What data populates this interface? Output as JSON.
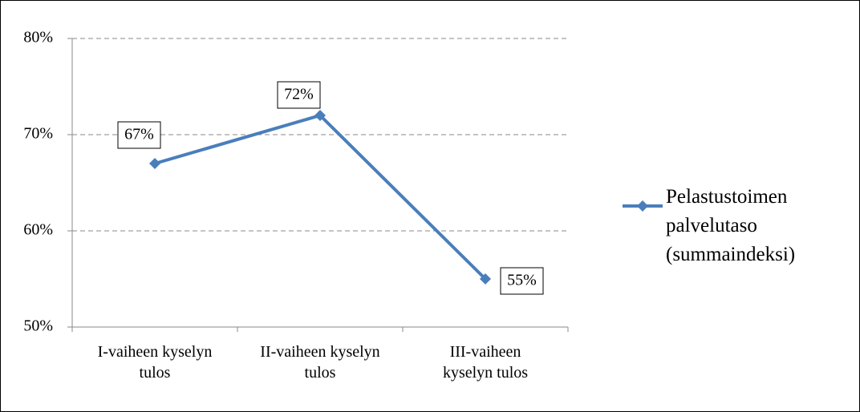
{
  "chart_data": {
    "type": "line",
    "categories": [
      "I-vaiheen kyselyn tulos",
      "II-vaiheen kyselyn tulos",
      "III-vaiheen kyselyn tulos"
    ],
    "series": [
      {
        "name": "Pelastustoimen palvelutaso (summaindeksi)",
        "color": "#4a7ebb",
        "values": [
          67,
          72,
          55
        ],
        "value_labels": [
          "67%",
          "72%",
          "55%"
        ]
      }
    ],
    "ylim": [
      50,
      80
    ],
    "yticks": [
      {
        "value": 50,
        "label": "50%"
      },
      {
        "value": 60,
        "label": "60%"
      },
      {
        "value": 70,
        "label": "70%"
      },
      {
        "value": 80,
        "label": "80%"
      }
    ],
    "grid": true,
    "legend": "right"
  }
}
